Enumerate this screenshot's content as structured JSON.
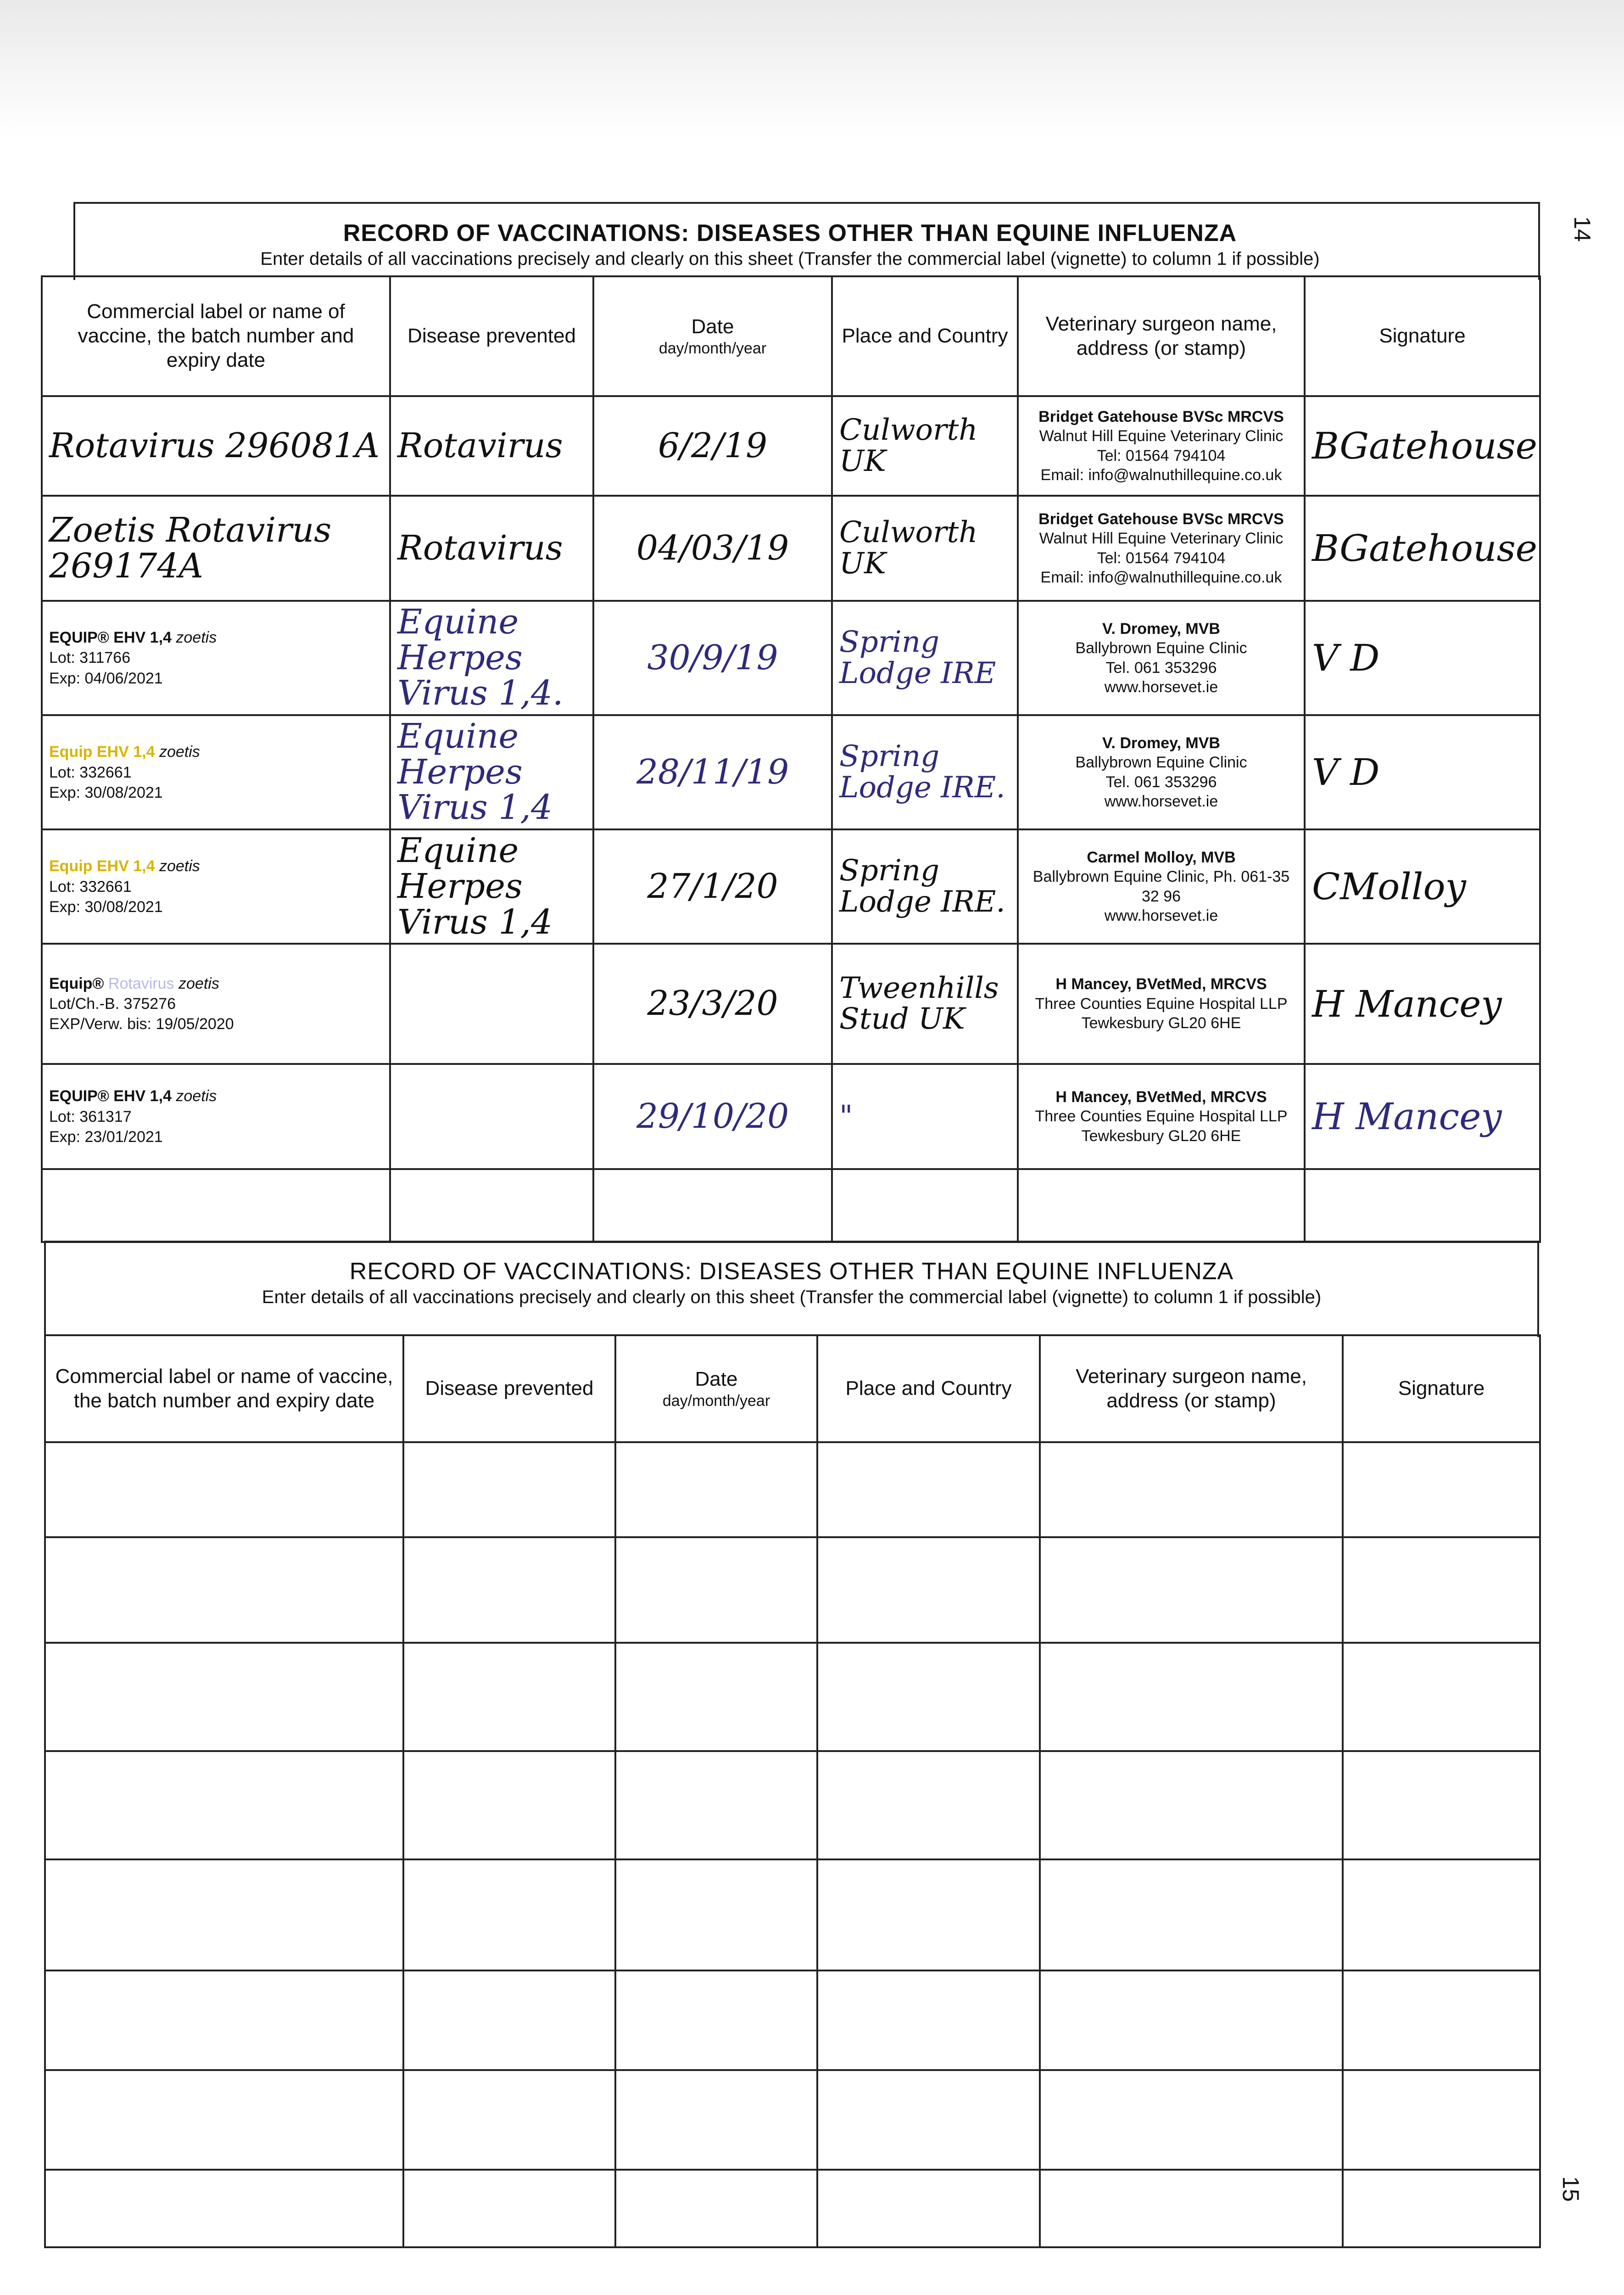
{
  "page_numbers": {
    "top": "14",
    "bottom": "15"
  },
  "form_title": "RECORD OF VACCINATIONS: DISEASES OTHER THAN EQUINE INFLUENZA",
  "form_instructions": "Enter details of all vaccinations precisely and clearly on this sheet (Transfer the commercial label (vignette) to column 1 if possible)",
  "top_table": {
    "headers": [
      "Commercial label or name of vaccine, the batch number and expiry date",
      "Disease prevented",
      "Date",
      "Place and Country",
      "Veterinary surgeon name, address (or stamp)",
      "Signature"
    ],
    "date_format": "day/month/year",
    "rows": [
      {
        "vaccine": "Rotavirus 296081A",
        "disease": "Rotavirus",
        "date": "6/2/19",
        "place": "Culworth UK",
        "vet": [
          "Bridget Gatehouse BVSc MRCVS",
          "Walnut Hill Equine Veterinary Clinic",
          "Tel: 01564 794104",
          "Email: info@walnuthillequine.co.uk"
        ],
        "signature": "BGatehouse"
      },
      {
        "vaccine": "Zoetis Rotavirus 269174A",
        "disease": "Rotavirus",
        "date": "04/03/19",
        "place": "Culworth UK",
        "vet": [
          "Bridget Gatehouse BVSc MRCVS",
          "Walnut Hill Equine Veterinary Clinic",
          "Tel: 01564 794104",
          "Email: info@walnuthillequine.co.uk"
        ],
        "signature": "BGatehouse"
      },
      {
        "vaccine_label": {
          "brand": "EQUIP® EHV 1,4",
          "maker": "zoetis",
          "lot_label": "Lot:",
          "lot": "311766",
          "exp_label": "Exp:",
          "exp": "04/06/2021"
        },
        "disease": "Equine Herpes Virus 1,4.",
        "date": "30/9/19",
        "place": "Spring Lodge IRE",
        "vet": [
          "V. Dromey, MVB",
          "Ballybrown Equine Clinic",
          "Tel. 061 353296",
          "www.horsevet.ie"
        ],
        "signature": "V D"
      },
      {
        "vaccine_label": {
          "brand": "Equip EHV 1,4",
          "maker": "zoetis",
          "lot_label": "Lot:",
          "lot": "332661",
          "exp_label": "Exp:",
          "exp": "30/08/2021"
        },
        "disease": "Equine Herpes Virus 1,4",
        "date": "28/11/19",
        "place": "Spring Lodge IRE.",
        "vet": [
          "V. Dromey, MVB",
          "Ballybrown Equine Clinic",
          "Tel. 061 353296",
          "www.horsevet.ie"
        ],
        "signature": "V D"
      },
      {
        "vaccine_label": {
          "brand": "Equip EHV 1,4",
          "maker": "zoetis",
          "lot_label": "Lot:",
          "lot": "332661",
          "exp_label": "Exp:",
          "exp": "30/08/2021"
        },
        "disease": "Equine Herpes Virus 1,4",
        "date": "27/1/20",
        "place": "Spring Lodge IRE.",
        "vet": [
          "Carmel Molloy, MVB",
          "Ballybrown Equine Clinic, Ph. 061-35 32 96",
          "www.horsevet.ie"
        ],
        "signature": "CMolloy"
      },
      {
        "vaccine_label": {
          "brand": "Equip®",
          "product": "Rotavirus",
          "maker": "zoetis",
          "lot_label": "Lot/Ch.-B.",
          "lot": "375276",
          "exp_label": "EXP/Verw. bis:",
          "exp": "19/05/2020"
        },
        "disease": "",
        "date": "23/3/20",
        "place": "Tweenhills Stud UK",
        "vet": [
          "H Mancey, BVetMed, MRCVS",
          "Three Counties Equine Hospital LLP",
          "Tewkesbury GL20 6HE"
        ],
        "signature": "H Mancey"
      },
      {
        "vaccine_label": {
          "brand": "EQUIP® EHV 1,4",
          "maker": "zoetis",
          "lot_label": "Lot:",
          "lot": "361317",
          "exp_label": "Exp:",
          "exp": "23/01/2021"
        },
        "disease": "",
        "date": "29/10/20",
        "place": "\"",
        "vet": [
          "H Mancey, BVetMed, MRCVS",
          "Three Counties Equine Hospital LLP",
          "Tewkesbury GL20 6HE"
        ],
        "signature": "H Mancey"
      },
      {
        "vaccine": "",
        "disease": "",
        "date": "",
        "place": "",
        "vet": [],
        "signature": ""
      }
    ]
  },
  "bottom_table": {
    "headers": [
      "Commercial label or name of vaccine, the batch number and expiry date",
      "Disease prevented",
      "Date",
      "Place and Country",
      "Veterinary surgeon name, address (or stamp)",
      "Signature"
    ],
    "date_format": "day/month/year",
    "empty_rows": 8
  }
}
